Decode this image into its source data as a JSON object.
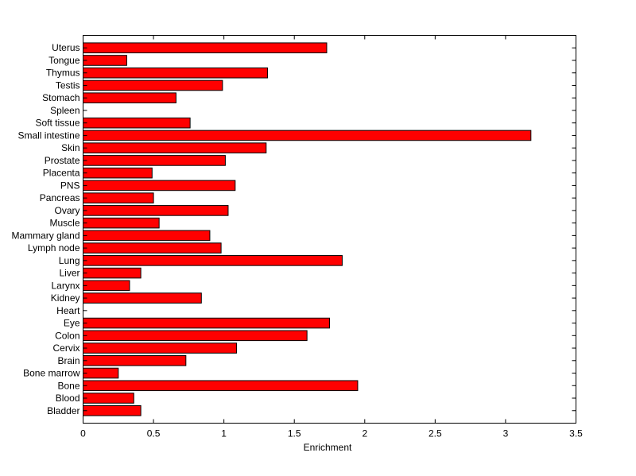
{
  "chart_data": {
    "type": "bar",
    "orientation": "horizontal",
    "title": "",
    "xlabel": "Enrichment",
    "ylabel": "",
    "xlim": [
      0,
      3.5
    ],
    "xticks": [
      0,
      0.5,
      1,
      1.5,
      2,
      2.5,
      3,
      3.5
    ],
    "xtick_labels": [
      "0",
      "0.5",
      "1",
      "1.5",
      "2",
      "2.5",
      "3",
      "3.5"
    ],
    "grid": false,
    "bar_color": "#ff0000",
    "bar_edge_color": "#000000",
    "categories": [
      "Uterus",
      "Tongue",
      "Thymus",
      "Testis",
      "Stomach",
      "Spleen",
      "Soft tissue",
      "Small intestine",
      "Skin",
      "Prostate",
      "Placenta",
      "PNS",
      "Pancreas",
      "Ovary",
      "Muscle",
      "Mammary gland",
      "Lymph node",
      "Lung",
      "Liver",
      "Larynx",
      "Kidney",
      "Heart",
      "Eye",
      "Colon",
      "Cervix",
      "Brain",
      "Bone marrow",
      "Bone",
      "Blood",
      "Bladder"
    ],
    "values": [
      1.73,
      0.31,
      1.31,
      0.99,
      0.66,
      0.0,
      0.76,
      3.18,
      1.3,
      1.01,
      0.49,
      1.08,
      0.5,
      1.03,
      0.54,
      0.9,
      0.98,
      1.84,
      0.41,
      0.33,
      0.84,
      0.0,
      1.75,
      1.59,
      1.09,
      0.73,
      0.25,
      1.95,
      0.36,
      0.41
    ]
  }
}
